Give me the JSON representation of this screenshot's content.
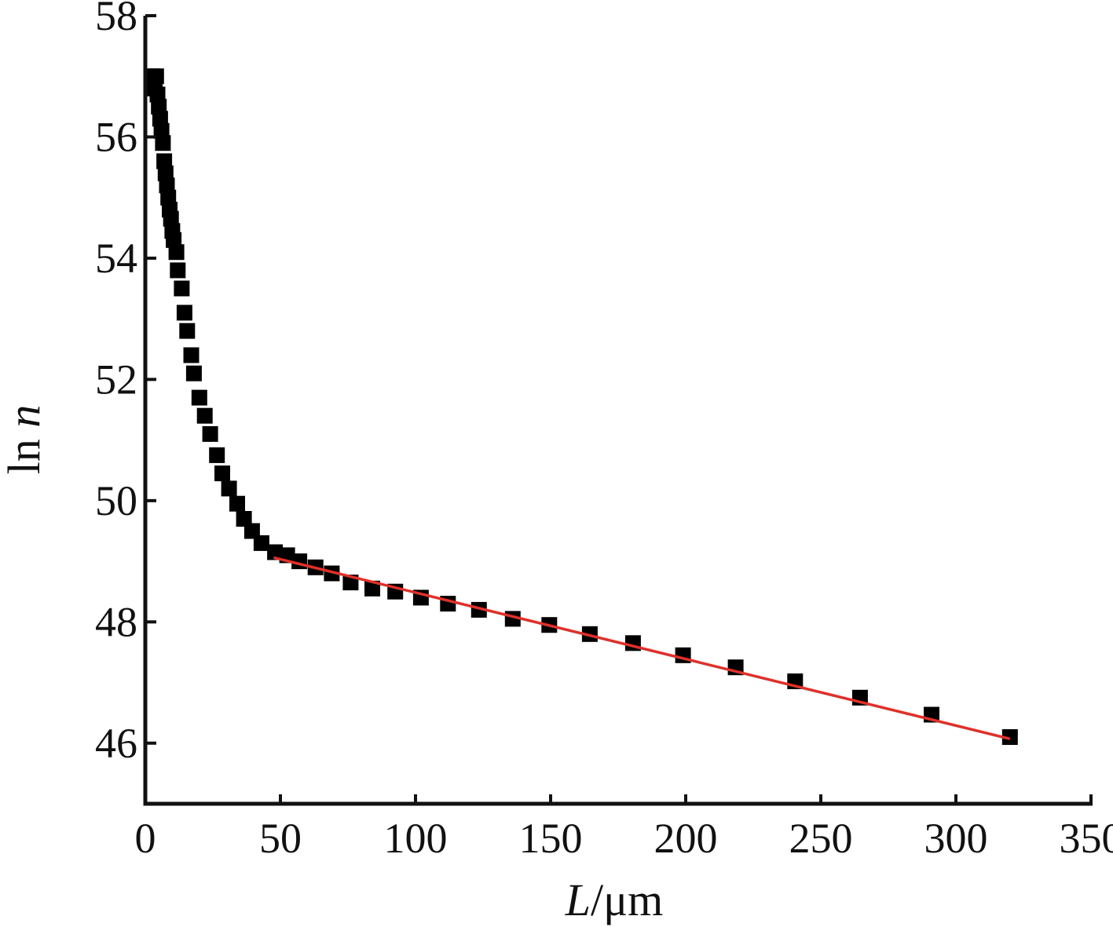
{
  "chart_data": {
    "type": "scatter",
    "title": "",
    "xlabel": {
      "italic": "L",
      "rest": "/μm"
    },
    "ylabel": {
      "rest": "ln ",
      "italic": "n"
    },
    "xlim": [
      0,
      350
    ],
    "ylim": [
      45,
      58
    ],
    "x_ticks": [
      0,
      50,
      100,
      150,
      200,
      250,
      300,
      350
    ],
    "y_ticks": [
      46,
      48,
      50,
      52,
      54,
      56,
      58
    ],
    "grid": false,
    "legend": "none",
    "colors": {
      "points": "#000000",
      "fit": "#e0302a",
      "axis": "#111111"
    },
    "series": [
      {
        "marker": "square",
        "points": [
          [
            2.5,
            57.0
          ],
          [
            3.0,
            56.8
          ],
          [
            3.5,
            56.9
          ],
          [
            4.0,
            57.0
          ],
          [
            4.5,
            56.7
          ],
          [
            5.0,
            56.5
          ],
          [
            5.5,
            56.3
          ],
          [
            6.0,
            56.1
          ],
          [
            6.5,
            55.9
          ],
          [
            7.0,
            55.6
          ],
          [
            7.5,
            55.4
          ],
          [
            8.0,
            55.2
          ],
          [
            8.5,
            55.0
          ],
          [
            9.0,
            54.8
          ],
          [
            9.5,
            54.65
          ],
          [
            10.0,
            54.45
          ],
          [
            10.5,
            54.3
          ],
          [
            11.5,
            54.1
          ],
          [
            12.0,
            53.8
          ],
          [
            13.5,
            53.5
          ],
          [
            14.5,
            53.1
          ],
          [
            15.5,
            52.8
          ],
          [
            17.0,
            52.4
          ],
          [
            18.0,
            52.1
          ],
          [
            20.0,
            51.7
          ],
          [
            22.0,
            51.4
          ],
          [
            24.0,
            51.1
          ],
          [
            26.5,
            50.75
          ],
          [
            28.5,
            50.45
          ],
          [
            31.0,
            50.2
          ],
          [
            34.0,
            49.95
          ],
          [
            36.5,
            49.7
          ],
          [
            39.5,
            49.5
          ],
          [
            43.0,
            49.3
          ],
          [
            48.0,
            49.15
          ],
          [
            52.5,
            49.1
          ],
          [
            57.0,
            49.0
          ],
          [
            63.0,
            48.9
          ],
          [
            69.0,
            48.8
          ],
          [
            76.0,
            48.65
          ],
          [
            84.0,
            48.55
          ],
          [
            92.5,
            48.5
          ],
          [
            102.0,
            48.4
          ],
          [
            112.0,
            48.3
          ],
          [
            123.5,
            48.2
          ],
          [
            136.0,
            48.05
          ],
          [
            149.5,
            47.95
          ],
          [
            164.5,
            47.8
          ],
          [
            180.5,
            47.65
          ],
          [
            199.0,
            47.45
          ],
          [
            218.5,
            47.25
          ],
          [
            240.5,
            47.02
          ],
          [
            264.5,
            46.75
          ],
          [
            291.0,
            46.47
          ],
          [
            320.0,
            46.1
          ]
        ]
      }
    ],
    "fit_line": {
      "x": [
        47.5,
        320.0
      ],
      "y": [
        49.06,
        46.07
      ]
    }
  }
}
